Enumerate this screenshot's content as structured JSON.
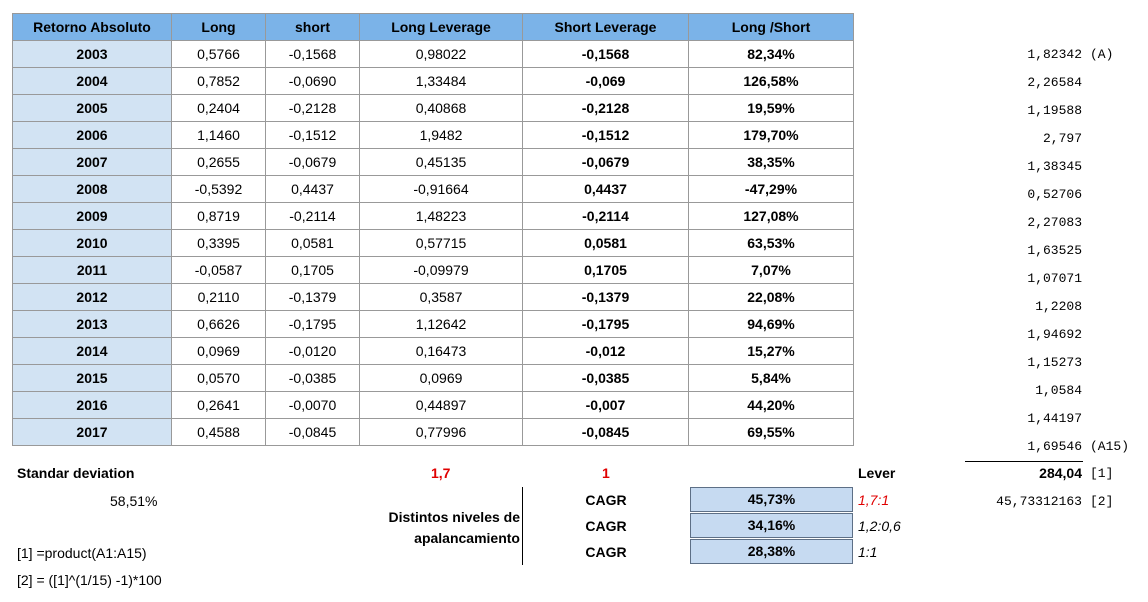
{
  "headers": [
    "Retorno Absoluto",
    "Long",
    "short",
    "Long Leverage",
    "Short Leverage",
    "Long /Short"
  ],
  "rows": [
    {
      "year": "2003",
      "long": "0,5766",
      "short": "-0,1568",
      "long_lev": "0,98022",
      "short_lev": "-0,1568",
      "ls": "82,34%",
      "side": "1,82342",
      "tag": "(A)"
    },
    {
      "year": "2004",
      "long": "0,7852",
      "short": "-0,0690",
      "long_lev": "1,33484",
      "short_lev": "-0,069",
      "ls": "126,58%",
      "side": "2,26584",
      "tag": ""
    },
    {
      "year": "2005",
      "long": "0,2404",
      "short": "-0,2128",
      "long_lev": "0,40868",
      "short_lev": "-0,2128",
      "ls": "19,59%",
      "side": "1,19588",
      "tag": ""
    },
    {
      "year": "2006",
      "long": "1,1460",
      "short": "-0,1512",
      "long_lev": "1,9482",
      "short_lev": "-0,1512",
      "ls": "179,70%",
      "side": "2,797",
      "tag": ""
    },
    {
      "year": "2007",
      "long": "0,2655",
      "short": "-0,0679",
      "long_lev": "0,45135",
      "short_lev": "-0,0679",
      "ls": "38,35%",
      "side": "1,38345",
      "tag": ""
    },
    {
      "year": "2008",
      "long": "-0,5392",
      "short": "0,4437",
      "long_lev": "-0,91664",
      "short_lev": "0,4437",
      "ls": "-47,29%",
      "side": "0,52706",
      "tag": ""
    },
    {
      "year": "2009",
      "long": "0,8719",
      "short": "-0,2114",
      "long_lev": "1,48223",
      "short_lev": "-0,2114",
      "ls": "127,08%",
      "side": "2,27083",
      "tag": ""
    },
    {
      "year": "2010",
      "long": "0,3395",
      "short": "0,0581",
      "long_lev": "0,57715",
      "short_lev": "0,0581",
      "ls": "63,53%",
      "side": "1,63525",
      "tag": ""
    },
    {
      "year": "2011",
      "long": "-0,0587",
      "short": "0,1705",
      "long_lev": "-0,09979",
      "short_lev": "0,1705",
      "ls": "7,07%",
      "side": "1,07071",
      "tag": ""
    },
    {
      "year": "2012",
      "long": "0,2110",
      "short": "-0,1379",
      "long_lev": "0,3587",
      "short_lev": "-0,1379",
      "ls": "22,08%",
      "side": "1,2208",
      "tag": ""
    },
    {
      "year": "2013",
      "long": "0,6626",
      "short": "-0,1795",
      "long_lev": "1,12642",
      "short_lev": "-0,1795",
      "ls": "94,69%",
      "side": "1,94692",
      "tag": ""
    },
    {
      "year": "2014",
      "long": "0,0969",
      "short": "-0,0120",
      "long_lev": "0,16473",
      "short_lev": "-0,012",
      "ls": "15,27%",
      "side": "1,15273",
      "tag": ""
    },
    {
      "year": "2015",
      "long": "0,0570",
      "short": "-0,0385",
      "long_lev": "0,0969",
      "short_lev": "-0,0385",
      "ls": "5,84%",
      "side": "1,0584",
      "tag": ""
    },
    {
      "year": "2016",
      "long": "0,2641",
      "short": "-0,0070",
      "long_lev": "0,44897",
      "short_lev": "-0,007",
      "ls": "44,20%",
      "side": "1,44197",
      "tag": ""
    },
    {
      "year": "2017",
      "long": "0,4588",
      "short": "-0,0845",
      "long_lev": "0,77996",
      "short_lev": "-0,0845",
      "ls": "69,55%",
      "side": "1,69546",
      "tag": "(A15)"
    }
  ],
  "summary": {
    "std_label": "Standar deviation",
    "std_value": "58,51%",
    "long_factor": "1,7",
    "short_factor": "1",
    "lever_label": "Lever",
    "product_value": "284,04",
    "product_tag": "[1]",
    "cagr_raw": "45,73312163",
    "cagr_raw_tag": "[2]",
    "niveles_line1": "Distintos niveles de",
    "niveles_line2": "apalancamiento",
    "footnote1": "[1] =product(A1:A15)",
    "footnote2": "[2] = ([1]^(1/15) -1)*100",
    "cagr_rows": [
      {
        "label": "CAGR",
        "value": "45,73%",
        "ratio": "1,7:1"
      },
      {
        "label": "CAGR",
        "value": "34,16%",
        "ratio": "1,2:0,6"
      },
      {
        "label": "CAGR",
        "value": "28,38%",
        "ratio": "1:1"
      }
    ]
  }
}
